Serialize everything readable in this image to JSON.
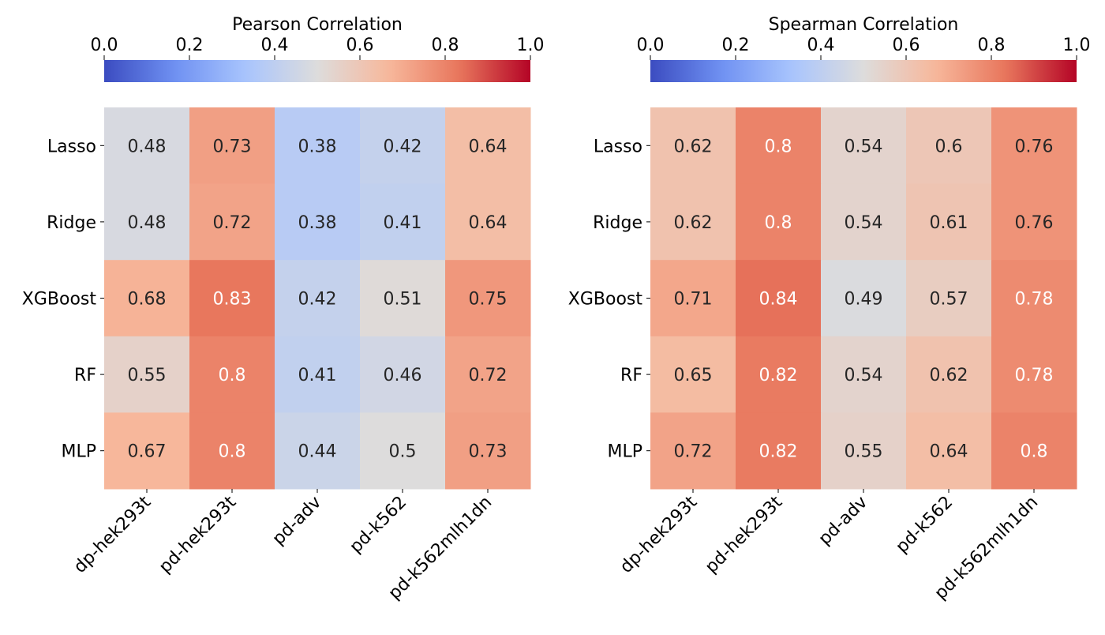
{
  "chart_data": [
    {
      "type": "heatmap",
      "colorbar": {
        "label": "Pearson Correlation",
        "range": [
          0,
          1
        ],
        "ticks": [
          "0.0",
          "0.2",
          "0.4",
          "0.6",
          "0.8",
          "1.0"
        ],
        "placement": "top",
        "colormap": "coolwarm"
      },
      "rows": [
        "Lasso",
        "Ridge",
        "XGBoost",
        "RF",
        "MLP"
      ],
      "columns": [
        "dp-hek293t",
        "pd-hek293t",
        "pd-adv",
        "pd-k562",
        "pd-k562mlh1dn"
      ],
      "values": [
        [
          0.48,
          0.73,
          0.38,
          0.42,
          0.64
        ],
        [
          0.48,
          0.72,
          0.38,
          0.41,
          0.64
        ],
        [
          0.68,
          0.83,
          0.42,
          0.51,
          0.75
        ],
        [
          0.55,
          0.8,
          0.41,
          0.46,
          0.72
        ],
        [
          0.67,
          0.8,
          0.44,
          0.5,
          0.73
        ]
      ]
    },
    {
      "type": "heatmap",
      "colorbar": {
        "label": "Spearman Correlation",
        "range": [
          0,
          1
        ],
        "ticks": [
          "0.0",
          "0.2",
          "0.4",
          "0.6",
          "0.8",
          "1.0"
        ],
        "placement": "top",
        "colormap": "coolwarm"
      },
      "rows": [
        "Lasso",
        "Ridge",
        "XGBoost",
        "RF",
        "MLP"
      ],
      "columns": [
        "dp-hek293t",
        "pd-hek293t",
        "pd-adv",
        "pd-k562",
        "pd-k562mlh1dn"
      ],
      "values": [
        [
          0.62,
          0.8,
          0.54,
          0.6,
          0.76
        ],
        [
          0.62,
          0.8,
          0.54,
          0.61,
          0.76
        ],
        [
          0.71,
          0.84,
          0.49,
          0.57,
          0.78
        ],
        [
          0.65,
          0.82,
          0.54,
          0.62,
          0.78
        ],
        [
          0.72,
          0.82,
          0.55,
          0.64,
          0.8
        ]
      ]
    }
  ],
  "colors": {
    "text_dark": "#262626",
    "text_light": "#ffffff",
    "colormap_stops": [
      "#3b4cc0",
      "#6f91f2",
      "#a9c5fd",
      "#dddcdc",
      "#f7b89c",
      "#e8765c",
      "#b40426"
    ]
  }
}
